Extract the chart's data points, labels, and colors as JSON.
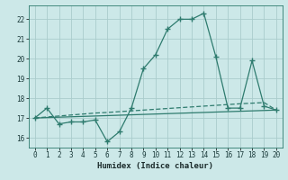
{
  "xlabel": "Humidex (Indice chaleur)",
  "bg_color": "#cce8e8",
  "grid_color": "#aacccc",
  "line_color": "#2e7b6e",
  "xlim": [
    -0.5,
    20.5
  ],
  "ylim": [
    15.5,
    22.7
  ],
  "xticks": [
    0,
    1,
    2,
    3,
    4,
    5,
    6,
    7,
    8,
    9,
    10,
    11,
    12,
    13,
    14,
    15,
    16,
    17,
    18,
    19,
    20
  ],
  "yticks": [
    16,
    17,
    18,
    19,
    20,
    21,
    22
  ],
  "series1_x": [
    0,
    1,
    2,
    3,
    4,
    5,
    6,
    7,
    8,
    9,
    10,
    11,
    12,
    13,
    14,
    15,
    16,
    17,
    18,
    19,
    20
  ],
  "series1_y": [
    17.0,
    17.5,
    16.7,
    16.8,
    16.8,
    16.9,
    15.8,
    16.3,
    17.5,
    19.5,
    20.2,
    21.5,
    22.0,
    22.0,
    22.3,
    20.1,
    17.5,
    17.5,
    19.9,
    17.6,
    17.4
  ],
  "series2_x": [
    0,
    1,
    2,
    3,
    4,
    5,
    6,
    7,
    8,
    9,
    10,
    11,
    12,
    13,
    14,
    15,
    16,
    17,
    18,
    19,
    20
  ],
  "series2_y": [
    17.0,
    17.05,
    17.1,
    17.15,
    17.2,
    17.25,
    17.28,
    17.32,
    17.36,
    17.4,
    17.44,
    17.48,
    17.52,
    17.56,
    17.6,
    17.64,
    17.68,
    17.72,
    17.75,
    17.78,
    17.4
  ],
  "series3_x": [
    0,
    20
  ],
  "series3_y": [
    17.0,
    17.4
  ]
}
